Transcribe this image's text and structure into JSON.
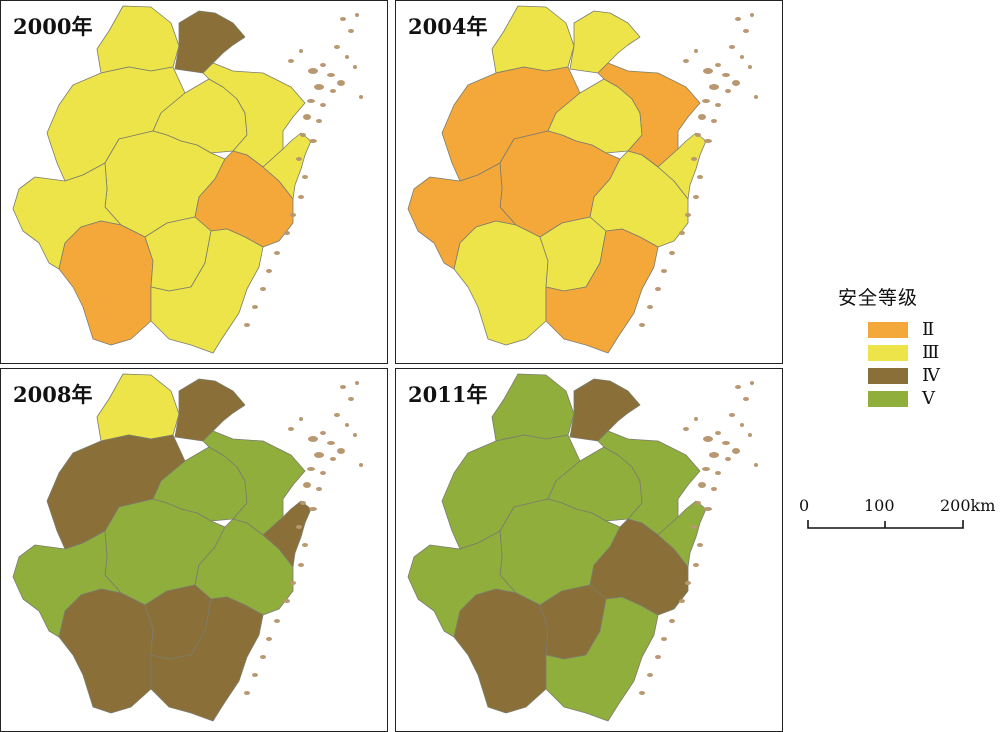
{
  "colors": {
    "II": "#f4a83a",
    "III": "#ece448",
    "IV": "#8a7038",
    "V": "#8fae3c",
    "island": "#b89870"
  },
  "panels": [
    {
      "year": "2000年",
      "regions": [
        "III",
        "IV",
        "III",
        "III",
        "III",
        "III",
        "III",
        "II",
        "III",
        "II",
        "III",
        "III"
      ]
    },
    {
      "year": "2004年",
      "regions": [
        "III",
        "III",
        "II",
        "III",
        "II",
        "II",
        "II",
        "III",
        "III",
        "III",
        "III",
        "II"
      ]
    },
    {
      "year": "2008年",
      "regions": [
        "III",
        "IV",
        "IV",
        "V",
        "V",
        "V",
        "V",
        "V",
        "IV",
        "IV",
        "IV",
        "IV"
      ]
    },
    {
      "year": "2011年",
      "regions": [
        "V",
        "IV",
        "V",
        "V",
        "V",
        "V",
        "V",
        "IV",
        "V",
        "IV",
        "IV",
        "V"
      ]
    }
  ],
  "legend": {
    "title": "安全等级",
    "items": [
      {
        "key": "II",
        "label": "Ⅱ"
      },
      {
        "key": "III",
        "label": "Ⅲ"
      },
      {
        "key": "IV",
        "label": "Ⅳ"
      },
      {
        "key": "V",
        "label": "Ⅴ"
      }
    ]
  },
  "scale_bar": {
    "labels": [
      "0",
      "100",
      "200km"
    ]
  }
}
